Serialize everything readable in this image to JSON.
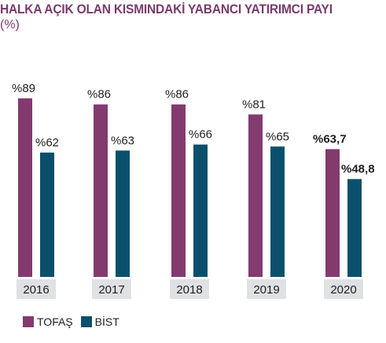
{
  "title": "HALKA AÇIK OLAN KISMINDAKİ YABANCI YATIRIMCI PAYI",
  "subtitle": "(%)",
  "chart_data": {
    "type": "bar",
    "categories": [
      "2016",
      "2017",
      "2018",
      "2019",
      "2020"
    ],
    "series": [
      {
        "name": "TOFAŞ",
        "color": "#833a6f",
        "values": [
          89,
          86,
          86,
          81,
          63.7
        ],
        "labels": [
          "%89",
          "%86",
          "%86",
          "%81",
          "%63,7"
        ]
      },
      {
        "name": "BİST",
        "color": "#0a506c",
        "values": [
          62,
          63,
          66,
          65,
          48.8
        ],
        "labels": [
          "%62",
          "%63",
          "%66",
          "%65",
          "%48,8"
        ]
      }
    ],
    "ylim": [
      0,
      100
    ],
    "grid": false,
    "legend": "bottom-left",
    "category_background": "#e0e1e5"
  }
}
